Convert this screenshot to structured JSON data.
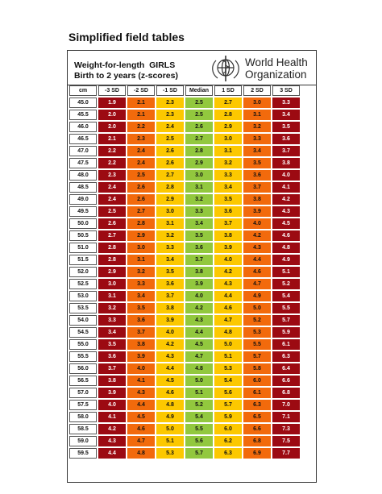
{
  "title": "Simplified field tables",
  "header": {
    "heading_lines": [
      "Weight-for-length  GIRLS",
      "Birth to 2 years (z-scores)"
    ],
    "organization_lines": [
      "World Health",
      "Organization"
    ]
  },
  "table": {
    "columns": [
      "cm",
      "-3 SD",
      "-2 SD",
      "-1 SD",
      "Median",
      "1 SD",
      "2 SD",
      "3 SD"
    ],
    "rows": [
      [
        "45.0",
        "1.9",
        "2.1",
        "2.3",
        "2.5",
        "2.7",
        "3.0",
        "3.3"
      ],
      [
        "45.5",
        "2.0",
        "2.1",
        "2.3",
        "2.5",
        "2.8",
        "3.1",
        "3.4"
      ],
      [
        "46.0",
        "2.0",
        "2.2",
        "2.4",
        "2.6",
        "2.9",
        "3.2",
        "3.5"
      ],
      [
        "46.5",
        "2.1",
        "2.3",
        "2.5",
        "2.7",
        "3.0",
        "3.3",
        "3.6"
      ],
      [
        "47.0",
        "2.2",
        "2.4",
        "2.6",
        "2.8",
        "3.1",
        "3.4",
        "3.7"
      ],
      [
        "47.5",
        "2.2",
        "2.4",
        "2.6",
        "2.9",
        "3.2",
        "3.5",
        "3.8"
      ],
      [
        "48.0",
        "2.3",
        "2.5",
        "2.7",
        "3.0",
        "3.3",
        "3.6",
        "4.0"
      ],
      [
        "48.5",
        "2.4",
        "2.6",
        "2.8",
        "3.1",
        "3.4",
        "3.7",
        "4.1"
      ],
      [
        "49.0",
        "2.4",
        "2.6",
        "2.9",
        "3.2",
        "3.5",
        "3.8",
        "4.2"
      ],
      [
        "49.5",
        "2.5",
        "2.7",
        "3.0",
        "3.3",
        "3.6",
        "3.9",
        "4.3"
      ],
      [
        "50.0",
        "2.6",
        "2.8",
        "3.1",
        "3.4",
        "3.7",
        "4.0",
        "4.5"
      ],
      [
        "50.5",
        "2.7",
        "2.9",
        "3.2",
        "3.5",
        "3.8",
        "4.2",
        "4.6"
      ],
      [
        "51.0",
        "2.8",
        "3.0",
        "3.3",
        "3.6",
        "3.9",
        "4.3",
        "4.8"
      ],
      [
        "51.5",
        "2.8",
        "3.1",
        "3.4",
        "3.7",
        "4.0",
        "4.4",
        "4.9"
      ],
      [
        "52.0",
        "2.9",
        "3.2",
        "3.5",
        "3.8",
        "4.2",
        "4.6",
        "5.1"
      ],
      [
        "52.5",
        "3.0",
        "3.3",
        "3.6",
        "3.9",
        "4.3",
        "4.7",
        "5.2"
      ],
      [
        "53.0",
        "3.1",
        "3.4",
        "3.7",
        "4.0",
        "4.4",
        "4.9",
        "5.4"
      ],
      [
        "53.5",
        "3.2",
        "3.5",
        "3.8",
        "4.2",
        "4.6",
        "5.0",
        "5.5"
      ],
      [
        "54.0",
        "3.3",
        "3.6",
        "3.9",
        "4.3",
        "4.7",
        "5.2",
        "5.7"
      ],
      [
        "54.5",
        "3.4",
        "3.7",
        "4.0",
        "4.4",
        "4.8",
        "5.3",
        "5.9"
      ],
      [
        "55.0",
        "3.5",
        "3.8",
        "4.2",
        "4.5",
        "5.0",
        "5.5",
        "6.1"
      ],
      [
        "55.5",
        "3.6",
        "3.9",
        "4.3",
        "4.7",
        "5.1",
        "5.7",
        "6.3"
      ],
      [
        "56.0",
        "3.7",
        "4.0",
        "4.4",
        "4.8",
        "5.3",
        "5.8",
        "6.4"
      ],
      [
        "56.5",
        "3.8",
        "4.1",
        "4.5",
        "5.0",
        "5.4",
        "6.0",
        "6.6"
      ],
      [
        "57.0",
        "3.9",
        "4.3",
        "4.6",
        "5.1",
        "5.6",
        "6.1",
        "6.8"
      ],
      [
        "57.5",
        "4.0",
        "4.4",
        "4.8",
        "5.2",
        "5.7",
        "6.3",
        "7.0"
      ],
      [
        "58.0",
        "4.1",
        "4.5",
        "4.9",
        "5.4",
        "5.9",
        "6.5",
        "7.1"
      ],
      [
        "58.5",
        "4.2",
        "4.6",
        "5.0",
        "5.5",
        "6.0",
        "6.6",
        "7.3"
      ],
      [
        "59.0",
        "4.3",
        "4.7",
        "5.1",
        "5.6",
        "6.2",
        "6.8",
        "7.5"
      ],
      [
        "59.5",
        "4.4",
        "4.8",
        "5.3",
        "5.7",
        "6.3",
        "6.9",
        "7.7"
      ]
    ]
  }
}
